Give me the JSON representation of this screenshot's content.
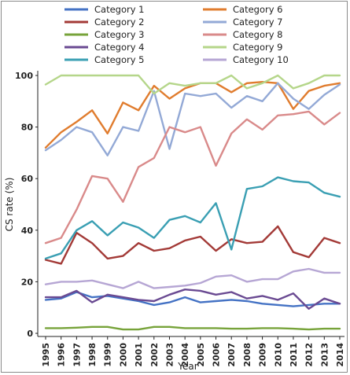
{
  "chart_data": {
    "type": "line",
    "xlabel": "Year",
    "ylabel": "CS rate (%)",
    "x": [
      1995,
      1996,
      1997,
      1998,
      1999,
      2000,
      2001,
      2002,
      2003,
      2004,
      2005,
      2006,
      2007,
      2008,
      2009,
      2010,
      2011,
      2012,
      2013,
      2014
    ],
    "ylim": [
      0,
      100
    ],
    "yticks": [
      0,
      20,
      40,
      60,
      80,
      100
    ],
    "grid": false,
    "legend_position": "top",
    "series": [
      {
        "name": "Category 1",
        "color": "#4472c4",
        "values": [
          13,
          13.5,
          16,
          14,
          14.5,
          13.5,
          12.5,
          11,
          12,
          14,
          12,
          12.5,
          13,
          12.5,
          11.5,
          11,
          10.5,
          11,
          11.5,
          11.5
        ]
      },
      {
        "name": "Category 2",
        "color": "#a33a37",
        "values": [
          28.5,
          27,
          39,
          35,
          29,
          30,
          35,
          32,
          33,
          36,
          37.5,
          32,
          36.5,
          35,
          35.5,
          41.5,
          31.5,
          29.5,
          37,
          35
        ]
      },
      {
        "name": "Category 3",
        "color": "#77a33a",
        "values": [
          2,
          2,
          2.2,
          2.5,
          2.5,
          1.5,
          1.5,
          2.5,
          2.5,
          2,
          2,
          2,
          1.8,
          1.8,
          2,
          2,
          1.8,
          1.5,
          1.8,
          1.8
        ]
      },
      {
        "name": "Category 4",
        "color": "#6a4a92",
        "values": [
          14,
          14,
          16.5,
          12,
          15,
          14,
          13,
          12.5,
          15,
          17,
          16.5,
          15,
          16,
          13.5,
          14.5,
          13,
          15.5,
          9.5,
          13.5,
          11.5
        ]
      },
      {
        "name": "Category 5",
        "color": "#3a9fb3",
        "values": [
          29,
          31,
          40,
          43.5,
          38,
          43,
          41,
          37,
          44,
          45.5,
          43,
          50.5,
          32.5,
          56,
          57,
          60.5,
          59,
          58.5,
          54.5,
          53
        ]
      },
      {
        "name": "Category 6",
        "color": "#e07c2e",
        "values": [
          72,
          78,
          82,
          86.5,
          77.5,
          89.5,
          86.5,
          96,
          91,
          95,
          97,
          97,
          93.5,
          97,
          97.5,
          97,
          87,
          94,
          96,
          97
        ]
      },
      {
        "name": "Category 7",
        "color": "#93a9d6",
        "values": [
          71,
          75,
          80,
          78,
          69,
          80,
          78.5,
          94,
          71.5,
          93,
          92,
          93,
          87.5,
          92,
          90,
          97,
          91,
          87,
          92.5,
          96.5
        ]
      },
      {
        "name": "Category 8",
        "color": "#d98a8a",
        "values": [
          35,
          37,
          48,
          61,
          60,
          51,
          64.5,
          68,
          80,
          78,
          80,
          65,
          77.5,
          83,
          79,
          84.5,
          85,
          86,
          81,
          85.5
        ]
      },
      {
        "name": "Category 9",
        "color": "#b5d68a",
        "values": [
          96.5,
          100,
          100,
          100,
          100,
          100,
          100,
          93,
          97,
          96,
          97,
          97,
          100,
          95,
          97,
          100,
          95,
          97,
          100,
          100
        ]
      },
      {
        "name": "Category 10",
        "color": "#b6a6d4",
        "values": [
          19,
          20,
          20,
          20.5,
          19,
          17.5,
          20,
          17.5,
          18,
          18.5,
          19.5,
          22,
          22.5,
          20,
          21,
          21,
          24,
          25,
          23.5,
          23.5
        ]
      }
    ]
  }
}
